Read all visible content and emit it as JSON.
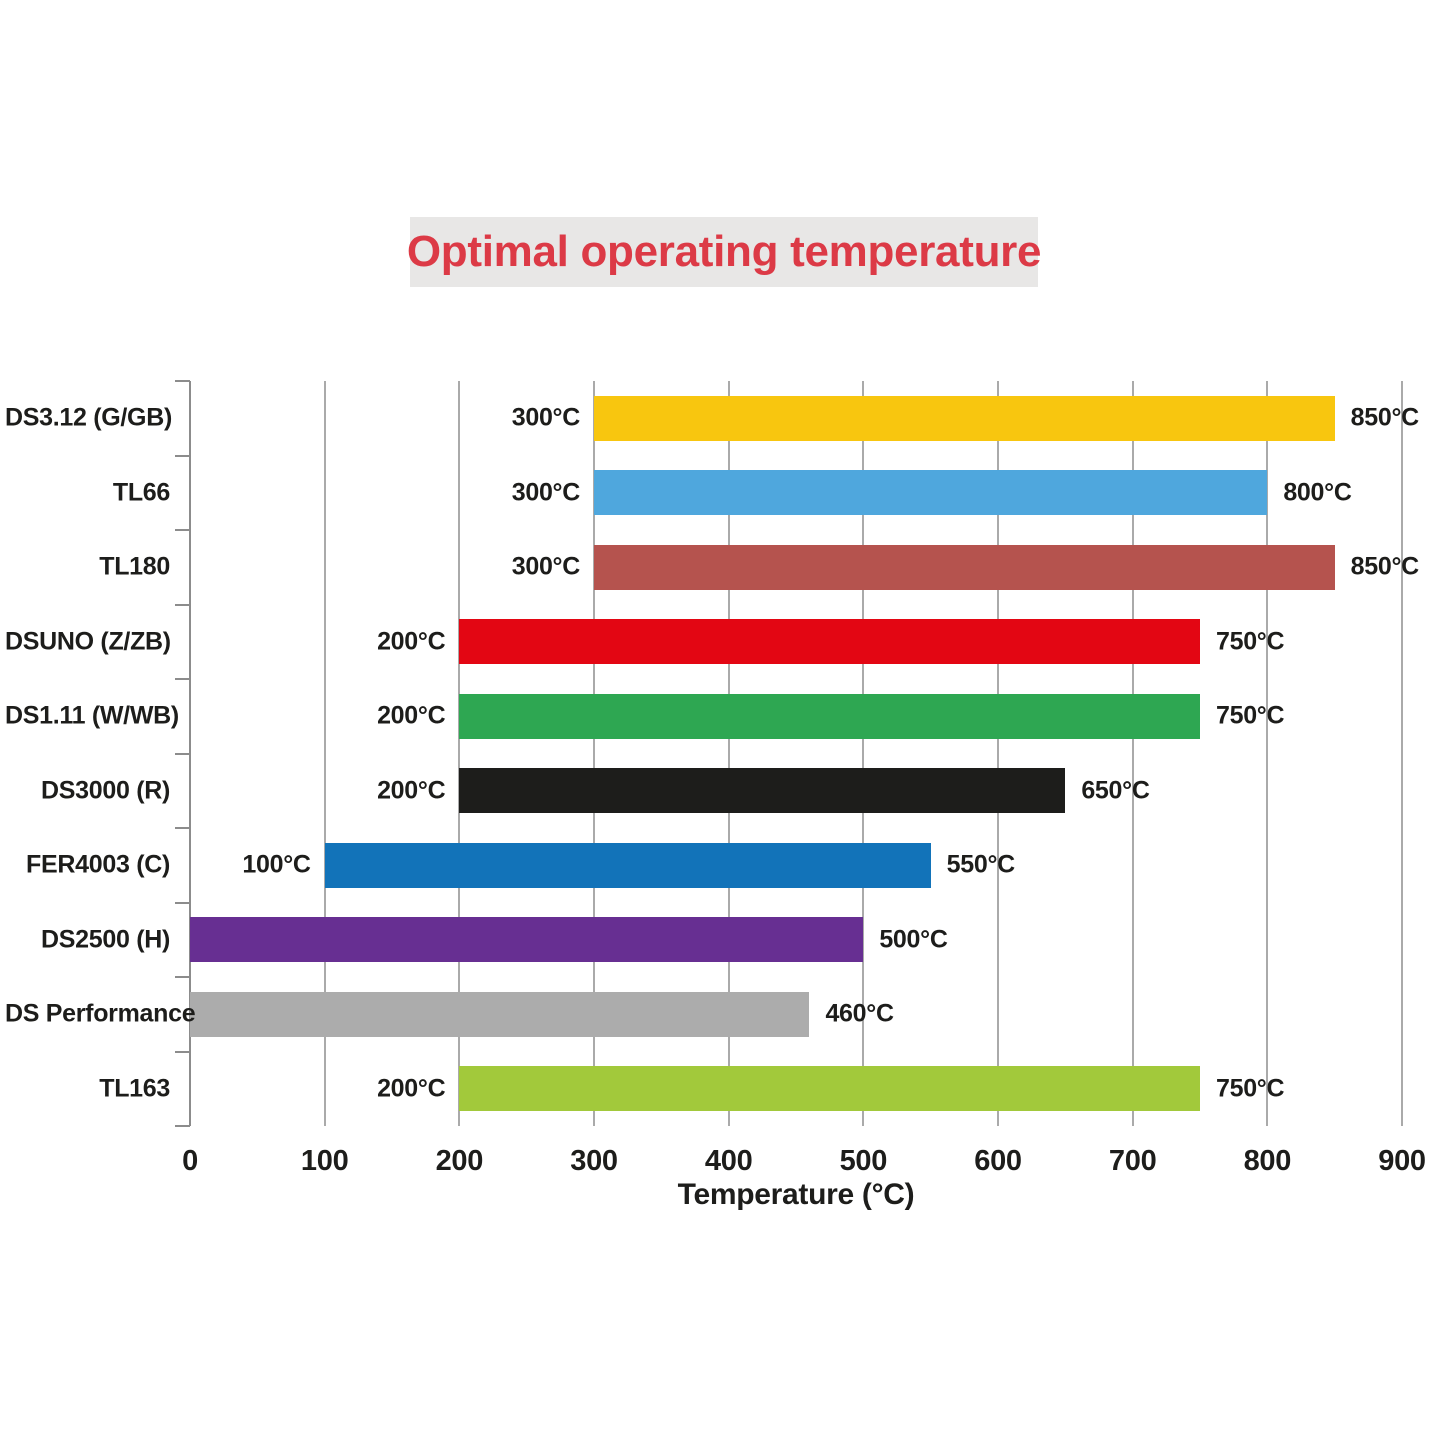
{
  "title": "Optimal operating temperature",
  "colors": {
    "title_text": "#dc3a46",
    "title_background": "#e8e7e6",
    "gridline": "#aaaaaa",
    "axis": "#8c8c8c",
    "text": "#1d1d1b"
  },
  "chart_data": {
    "type": "bar",
    "orientation": "horizontal",
    "title": "Optimal operating temperature",
    "xlabel": "Temperature (°C)",
    "xlim": [
      0,
      900
    ],
    "xticks": [
      "0",
      "100",
      "200",
      "300",
      "400",
      "500",
      "600",
      "700",
      "800",
      "900"
    ],
    "grid": true,
    "bars": [
      {
        "label": "DS3.12 (G/GB)",
        "start": 300,
        "end": 850,
        "start_label": "300°C",
        "end_label": "850°C",
        "color": "#f8c60f"
      },
      {
        "label": "TL66",
        "start": 300,
        "end": 800,
        "start_label": "300°C",
        "end_label": "800°C",
        "color": "#4fa7dd"
      },
      {
        "label": "TL180",
        "start": 300,
        "end": 850,
        "start_label": "300°C",
        "end_label": "850°C",
        "color": "#b5534e"
      },
      {
        "label": "DSUNO (Z/ZB)",
        "start": 200,
        "end": 750,
        "start_label": "200°C",
        "end_label": "750°C",
        "color": "#e30613"
      },
      {
        "label": "DS1.11 (W/WB)",
        "start": 200,
        "end": 750,
        "start_label": "200°C",
        "end_label": "750°C",
        "color": "#2ea752"
      },
      {
        "label": "DS3000 (R)",
        "start": 200,
        "end": 650,
        "start_label": "200°C",
        "end_label": "650°C",
        "color": "#1d1d1b"
      },
      {
        "label": "FER4003 (C)",
        "start": 100,
        "end": 550,
        "start_label": "100°C",
        "end_label": "550°C",
        "color": "#1273b9"
      },
      {
        "label": "DS2500 (H)",
        "start": 0,
        "end": 500,
        "start_label": "",
        "end_label": "500°C",
        "color": "#672f92"
      },
      {
        "label": "DS Performance",
        "start": 0,
        "end": 460,
        "start_label": "",
        "end_label": "460°C",
        "color": "#acacac"
      },
      {
        "label": "TL163",
        "start": 200,
        "end": 750,
        "start_label": "200°C",
        "end_label": "750°C",
        "color": "#a2c93b"
      }
    ]
  }
}
